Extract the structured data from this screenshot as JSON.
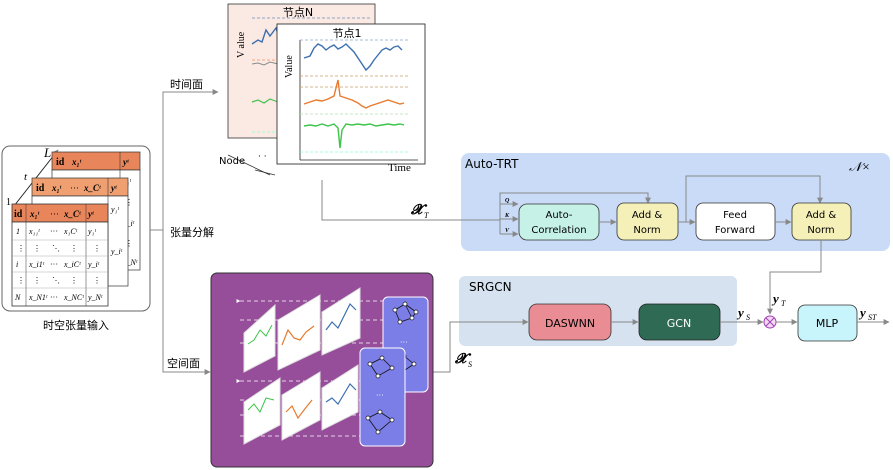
{
  "tensor": {
    "caption": "时空张量输入",
    "axis_L": "L",
    "axis_t": "t",
    "axis_1": "1",
    "header": [
      "id",
      "x₁ᵗ",
      "···",
      "x_Cᵗ",
      "yᵗ"
    ],
    "rows": [
      [
        "1",
        "x₁₁ᵗ",
        "···",
        "x₁Cᵗ",
        "y₁ᵗ"
      ],
      [
        "⋮",
        "⋮",
        "⋱",
        "⋮",
        "⋮"
      ],
      [
        "i",
        "x_i1ᵗ",
        "···",
        "x_iCᵗ",
        "y_iᵗ"
      ],
      [
        "⋮",
        "⋮",
        "⋱",
        "⋮",
        "⋮"
      ],
      [
        "N",
        "x_N1ᵗ",
        "···",
        "x_NCᵗ",
        "y_Nᵗ"
      ]
    ],
    "back_cells": [
      "y₁ᵗ",
      "⋮",
      "y_iᵗ",
      "⋮",
      "y_Nᵗ"
    ]
  },
  "branches": {
    "time": "时间面",
    "decompose": "张量分解",
    "space": "空间面"
  },
  "time_panels": {
    "back_title": "节点N",
    "front_title": "节点1",
    "back_ylabel": "V alue",
    "front_ylabel": "Value",
    "xlabel": "Time",
    "node_label": "Node",
    "dots": "· ·"
  },
  "auto_trt": {
    "title": "Auto-TRT",
    "repeat": "𝒩×",
    "input_symbol": "𝓧",
    "input_sub": "T",
    "qkv": [
      "Q",
      "K",
      "V"
    ],
    "blocks": {
      "autocorr": [
        "Auto-",
        "Correlation"
      ],
      "addnorm1": [
        "Add &",
        "Norm"
      ],
      "ff": [
        "Feed",
        "Forward"
      ],
      "addnorm2": [
        "Add &",
        "Norm"
      ]
    }
  },
  "srgcn": {
    "title": "SRGCN",
    "daswnn": "DASWNN",
    "gcn": "GCN",
    "input_symbol": "𝓧",
    "input_sub": "S",
    "output_symbol": "y",
    "output_sub": "S"
  },
  "fusion": {
    "yT_symbol": "y",
    "yT_sub": "T",
    "op": "⊗",
    "mlp": "MLP",
    "out_symbol": "y",
    "out_sub": "ST"
  },
  "spatial_panel": {
    "ellipsis": "···"
  },
  "colors": {
    "tensor_header": "#e8855a",
    "tensor_header_mid": "#f0a070",
    "auto_trt_bg": "#c9dbf7",
    "srgcn_bg": "#d6e2f0",
    "autocorr": "#c6f1e7",
    "addnorm": "#f5f0b8",
    "ff": "#ffffff",
    "daswnn": "#e98c93",
    "gcn": "#2f6a54",
    "mlp": "#c8f4fb",
    "spatial_bg": "#964d9a",
    "graph_card": "#7c7ee8",
    "blue_series": "#3c6fb0",
    "orange_series": "#e87a2e",
    "green_series": "#3ec44a"
  }
}
